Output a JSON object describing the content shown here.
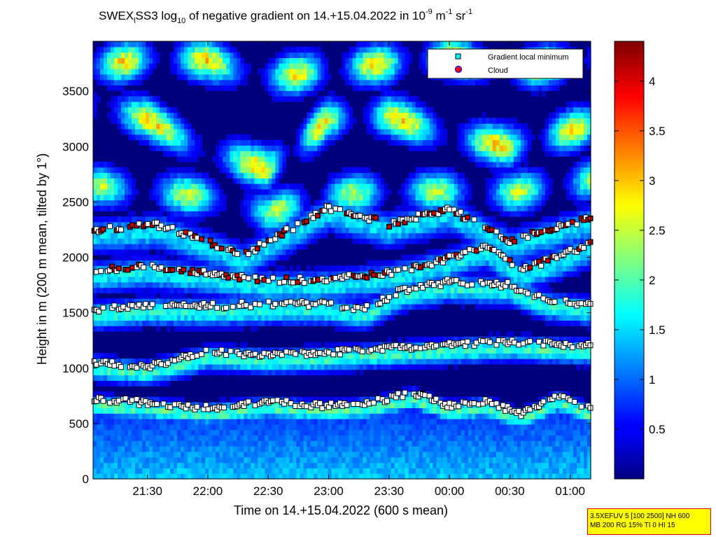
{
  "chart_data": {
    "type": "heatmap",
    "title_parts": {
      "a": "SWEX",
      "a_sub": "l",
      "b": "SS3 log",
      "b_sub": "10",
      "c": " of negative gradient on 14.+15.04.2022 in 10",
      "c_sup": "-9",
      "d": " m",
      "d_sup": "-1",
      "e": " sr",
      "e_sup": "-1"
    },
    "xlabel": "Time on 14.+15.04.2022 (600 s mean)",
    "ylabel": "Height in m (200 m mean, tilted by 1°)",
    "x_range_hours": [
      21.05,
      25.17
    ],
    "x_ticks": [
      {
        "h": 21.5,
        "label": "21:30"
      },
      {
        "h": 22.0,
        "label": "22:00"
      },
      {
        "h": 22.5,
        "label": "22:30"
      },
      {
        "h": 23.0,
        "label": "23:00"
      },
      {
        "h": 23.5,
        "label": "23:30"
      },
      {
        "h": 24.0,
        "label": "00:00"
      },
      {
        "h": 24.5,
        "label": "00:30"
      },
      {
        "h": 25.0,
        "label": "01:00"
      }
    ],
    "ylim": [
      0,
      3950
    ],
    "y_ticks": [
      0,
      500,
      1000,
      1500,
      2000,
      2500,
      3000,
      3500
    ],
    "colorbar": {
      "range": [
        0,
        4.4
      ],
      "ticks": [
        "0.5",
        "1",
        "1.5",
        "2",
        "2.5",
        "3",
        "3.5",
        "4"
      ],
      "tick_values": [
        0.5,
        1,
        1.5,
        2,
        2.5,
        3,
        3.5,
        4
      ],
      "colormap": "jet"
    },
    "legend": {
      "position": "top-right",
      "entries": [
        {
          "label": "Gradient local minimum",
          "marker": "square",
          "color": "#00ffff"
        },
        {
          "label": "Cloud",
          "marker": "circle",
          "color": "#ff0000"
        }
      ]
    },
    "layers": [
      {
        "time": [
          21.05,
          21.6,
          22.0,
          22.5,
          23.0,
          23.4,
          23.7,
          24.0,
          24.3,
          24.6,
          24.9,
          25.17
        ],
        "height": [
          720,
          680,
          640,
          700,
          660,
          700,
          780,
          660,
          700,
          590,
          750,
          630
        ]
      },
      {
        "time": [
          21.05,
          21.5,
          22.0,
          22.5,
          23.0,
          23.5,
          24.0,
          24.5,
          25.17
        ],
        "height": [
          1060,
          1010,
          1150,
          1120,
          1140,
          1180,
          1210,
          1240,
          1200
        ]
      },
      {
        "time": [
          21.05,
          21.5,
          22.0,
          22.5,
          23.0,
          23.3,
          23.6,
          24.0,
          24.5,
          24.8,
          25.17
        ],
        "height": [
          1530,
          1570,
          1560,
          1580,
          1580,
          1530,
          1700,
          1780,
          1750,
          1620,
          1570
        ]
      },
      {
        "time": [
          21.05,
          21.5,
          22.0,
          22.5,
          23.0,
          23.5,
          24.0,
          24.3,
          24.6,
          25.17
        ],
        "height": [
          1880,
          1920,
          1860,
          1790,
          1800,
          1860,
          1990,
          2100,
          1880,
          2120
        ]
      },
      {
        "time": [
          21.05,
          21.6,
          22.3,
          23.0,
          23.5,
          24.0,
          24.5,
          25.17
        ],
        "height": [
          2250,
          2290,
          2020,
          2450,
          2300,
          2440,
          2150,
          2360
        ]
      }
    ],
    "bands": [
      {
        "time": [
          21.05,
          21.5,
          22.0,
          22.5,
          23.0,
          23.5,
          24.0,
          24.5,
          25.17
        ],
        "height": [
          3720,
          3800,
          3780,
          3620,
          3700,
          3750,
          3820,
          3680,
          3800
        ],
        "amplitude": 2.9
      },
      {
        "time": [
          21.05,
          21.5,
          22.0,
          22.5,
          23.0,
          23.5,
          24.0,
          24.5,
          25.17
        ],
        "height": [
          3380,
          3250,
          2950,
          2800,
          3250,
          3280,
          3100,
          3000,
          3200
        ],
        "amplitude": 3.0
      },
      {
        "time": [
          21.05,
          21.5,
          22.0,
          22.5,
          23.0,
          23.5,
          24.0,
          24.5,
          25.17
        ],
        "height": [
          2650,
          2600,
          2550,
          2400,
          2560,
          2600,
          2600,
          2580,
          2700
        ],
        "amplitude": 2.5
      }
    ]
  },
  "info_box": {
    "line1": "3.5XEFUV 5 [100 2500] NH 600",
    "line2": "MB 200 RG 15% TI 0 HI 15"
  }
}
